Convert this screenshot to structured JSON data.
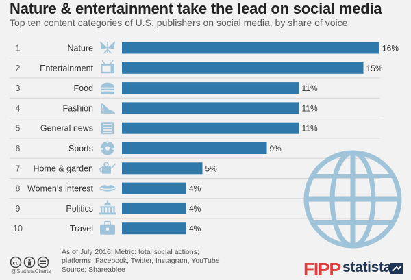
{
  "title": "Nature & entertainment take the lead on social media",
  "subtitle": "Top ten content categories of U.S. publishers on social media, by share of voice",
  "chart_data": {
    "type": "bar",
    "orientation": "horizontal",
    "title": "Nature & entertainment take the lead on social media",
    "subtitle": "Top ten content categories of U.S. publishers on social media, by share of voice",
    "ranks": [
      "1",
      "2",
      "3",
      "4",
      "5",
      "6",
      "7",
      "8",
      "9",
      "10"
    ],
    "categories": [
      "Nature",
      "Entertainment",
      "Food",
      "Fashion",
      "General news",
      "Sports",
      "Home & garden",
      "Women's interest",
      "Politics",
      "Travel"
    ],
    "values": [
      16,
      15,
      11,
      11,
      11,
      9,
      5,
      4,
      4,
      4
    ],
    "value_labels": [
      "16%",
      "15%",
      "11%",
      "11%",
      "11%",
      "9%",
      "5%",
      "4%",
      "4%",
      "4%"
    ],
    "unit": "%",
    "xlim": [
      0,
      16
    ],
    "grid": false,
    "legend": "none",
    "bar_color": "#2e79a9",
    "icons": [
      "butterfly-icon",
      "tv-icon",
      "burger-icon",
      "high-heel-icon",
      "newspaper-icon",
      "soccer-ball-icon",
      "watering-can-icon",
      "lips-icon",
      "capitol-building-icon",
      "suitcase-icon"
    ]
  },
  "footer": {
    "note_lines": [
      "As of July 2016; Metric: total social actions;",
      "platforms: Facebook, Twitter, Instagram, YouTube",
      "Source: Shareablee"
    ],
    "handle": "@StatistaCharts",
    "brand_fipp": "FIPP",
    "brand_statista": "statista",
    "cc_icons": [
      "cc-icon",
      "by-icon",
      "nd-icon"
    ]
  },
  "colors": {
    "background": "#f2f2f2",
    "bar": "#2e79a9",
    "icon": "#9fc3d9",
    "fipp": "#e23c3c",
    "statista": "#1f3556"
  }
}
